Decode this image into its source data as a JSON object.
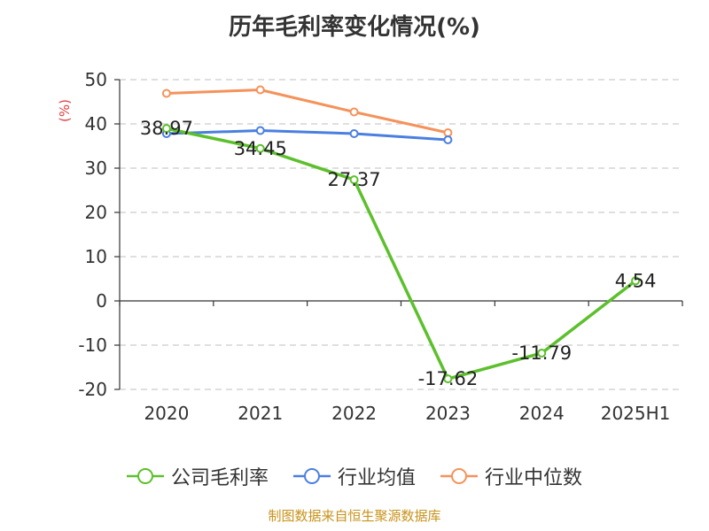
{
  "title": "历年毛利率变化情况(%)",
  "source": "制图数据来自恒生聚源数据库",
  "colors": {
    "company": "#5cc02c",
    "industry_avg": "#4a7fe0",
    "industry_median": "#f5925a",
    "unit": "#e04040",
    "source": "#c8921a"
  },
  "chart_data": {
    "type": "line",
    "title": "历年毛利率变化情况(%)",
    "ylabel": "(%)",
    "xlabel": "",
    "categories": [
      "2020",
      "2021",
      "2022",
      "2023",
      "2024",
      "2025H1"
    ],
    "ylim": [
      -20,
      50
    ],
    "yticks": [
      50,
      40,
      30,
      20,
      10,
      0,
      -10,
      -20
    ],
    "grid": true,
    "legend_position": "bottom",
    "series": [
      {
        "name": "公司毛利率",
        "values": [
          38.97,
          34.45,
          27.37,
          -17.62,
          -11.79,
          4.54
        ],
        "labels": [
          "38.97",
          "34.45",
          "27.37",
          "-17.62",
          "-11.79",
          "4.54"
        ]
      },
      {
        "name": "行业均值",
        "values": [
          37.8,
          38.5,
          37.8,
          36.4,
          null,
          null
        ]
      },
      {
        "name": "行业中位数",
        "values": [
          46.9,
          47.7,
          42.7,
          38.0,
          null,
          null
        ]
      }
    ]
  }
}
